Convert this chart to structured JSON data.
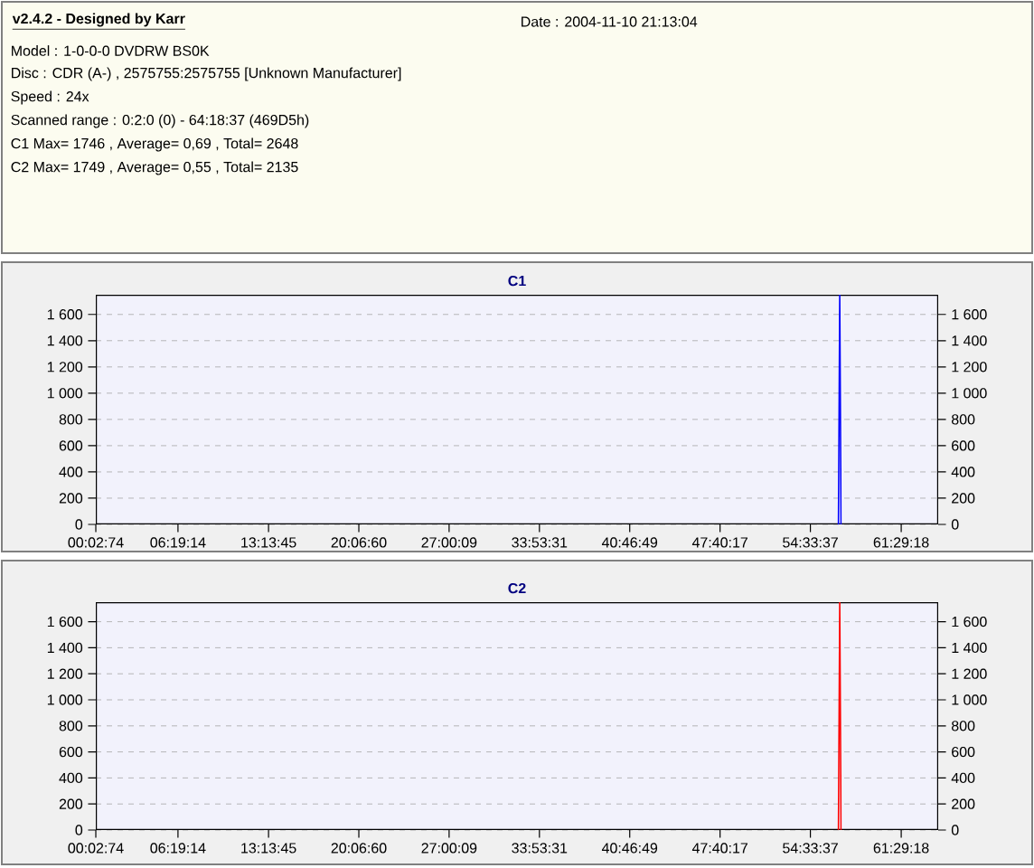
{
  "chart_data": [
    {
      "type": "other",
      "title": "v2.4.2 - Designed by Karr",
      "annotations": [
        "Date : 2004-11-10 21:13:04",
        "Model : 1-0-0-0 DVDRW BS0K",
        "Disc : CDR (A-) , 2575755:2575755 [Unknown Manufacturer]",
        "Speed : 24x",
        "Scanned range : 0:2:0 (0) - 64:18:37 (469D5h)",
        "C1 Max= 1746 , Average= 0,69 , Total= 2648",
        "C2 Max= 1749 , Average= 0,55 , Total= 2135"
      ]
    },
    {
      "type": "line",
      "title": "C1",
      "x": [
        56.7,
        56.8,
        56.9
      ],
      "series": [
        {
          "color": "#0000ff",
          "values": [
            0,
            1746,
            0
          ]
        }
      ],
      "xlim": [
        0.05389,
        64.31
      ],
      "xticks": [
        {
          "value": 0.05389,
          "label": "00:02:74"
        },
        {
          "value": 6.32056,
          "label": "06:19:14"
        },
        {
          "value": 13.22917,
          "label": "13:13:45"
        },
        {
          "value": 20.11667,
          "label": "20:06:60"
        },
        {
          "value": 27.0025,
          "label": "27:00:09"
        },
        {
          "value": 33.89194,
          "label": "33:53:31"
        },
        {
          "value": 40.78028,
          "label": "40:46:49"
        },
        {
          "value": 47.67139,
          "label": "47:40:17"
        },
        {
          "value": 54.56028,
          "label": "54:33:37"
        },
        {
          "value": 61.48833,
          "label": "61:29:18"
        }
      ],
      "ylim": [
        0,
        1750
      ],
      "yticks": [
        0,
        200,
        400,
        600,
        800,
        {
          "value": 1000,
          "label": "1 000"
        },
        {
          "value": 1200,
          "label": "1 200"
        },
        {
          "value": 1400,
          "label": "1 400"
        },
        {
          "value": 1600,
          "label": "1 600"
        }
      ],
      "y2lim": [
        0,
        1750
      ],
      "y2ticks": [
        0,
        200,
        400,
        600,
        800,
        {
          "value": 1000,
          "label": "1 000"
        },
        {
          "value": 1200,
          "label": "1 200"
        },
        {
          "value": 1400,
          "label": "1 400"
        },
        {
          "value": 1600,
          "label": "1 600"
        }
      ],
      "grid": "y"
    },
    {
      "type": "line",
      "title": "C2",
      "x": [
        56.7,
        56.8,
        56.9
      ],
      "series": [
        {
          "color": "#ff0000",
          "values": [
            0,
            1749,
            0
          ]
        }
      ],
      "xlim": [
        0.05389,
        64.31
      ],
      "xticks": [
        {
          "value": 0.05389,
          "label": "00:02:74"
        },
        {
          "value": 6.32056,
          "label": "06:19:14"
        },
        {
          "value": 13.22917,
          "label": "13:13:45"
        },
        {
          "value": 20.11667,
          "label": "20:06:60"
        },
        {
          "value": 27.0025,
          "label": "27:00:09"
        },
        {
          "value": 33.89194,
          "label": "33:53:31"
        },
        {
          "value": 40.78028,
          "label": "40:46:49"
        },
        {
          "value": 47.67139,
          "label": "47:40:17"
        },
        {
          "value": 54.56028,
          "label": "54:33:37"
        },
        {
          "value": 61.48833,
          "label": "61:29:18"
        }
      ],
      "ylim": [
        0,
        1750
      ],
      "yticks": [
        0,
        200,
        400,
        600,
        800,
        {
          "value": 1000,
          "label": "1 000"
        },
        {
          "value": 1200,
          "label": "1 200"
        },
        {
          "value": 1400,
          "label": "1 400"
        },
        {
          "value": 1600,
          "label": "1 600"
        }
      ],
      "y2lim": [
        0,
        1750
      ],
      "y2ticks": [
        0,
        200,
        400,
        600,
        800,
        {
          "value": 1000,
          "label": "1 000"
        },
        {
          "value": 1200,
          "label": "1 200"
        },
        {
          "value": 1400,
          "label": "1 400"
        },
        {
          "value": 1600,
          "label": "1 600"
        }
      ],
      "grid": "y"
    }
  ]
}
